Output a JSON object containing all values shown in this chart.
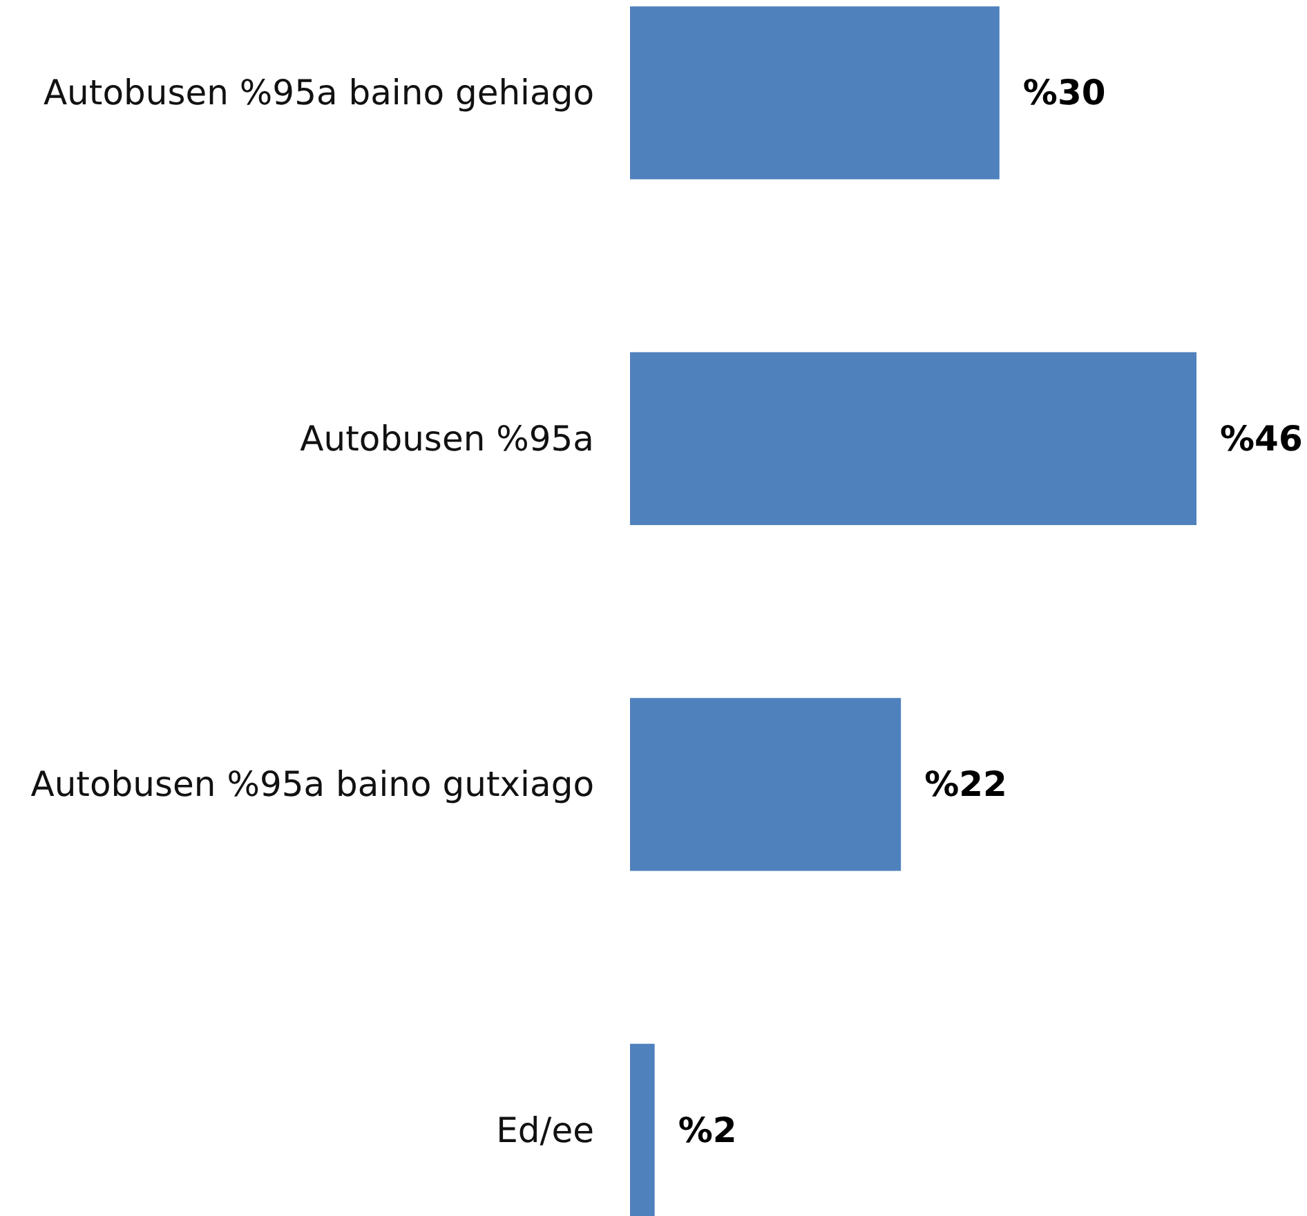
{
  "chart_data": {
    "type": "bar",
    "orientation": "horizontal",
    "categories": [
      "Autobusen %95a baino gehiago",
      "Autobusen %95a",
      "Autobusen %95a baino gutxiago",
      "Ed/ee"
    ],
    "values": [
      30,
      46,
      22,
      2
    ],
    "color": "#4f81bd",
    "value_labels": [
      "%30",
      "%46",
      "%22",
      "%2"
    ]
  }
}
